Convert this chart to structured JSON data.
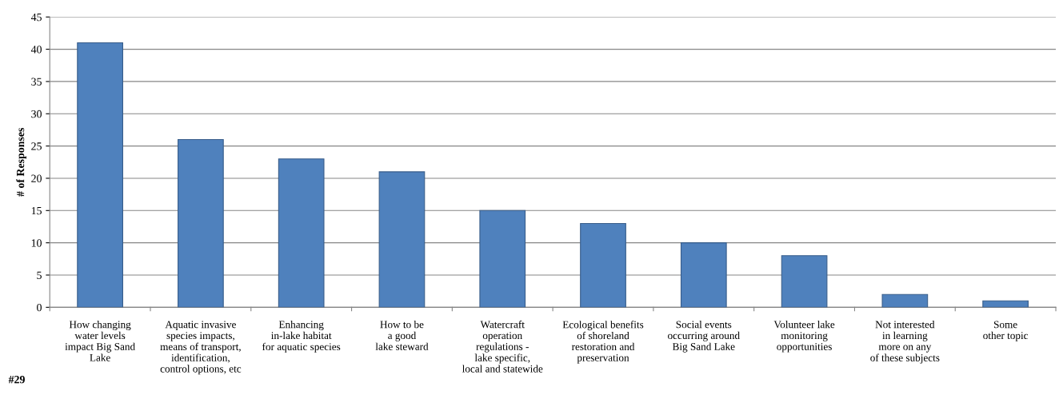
{
  "chart_data": {
    "type": "bar",
    "ylabel": "# of Responses",
    "categories": [
      "How changing\nwater levels\nimpact Big Sand\nLake",
      "Aquatic invasive\nspecies impacts,\nmeans of transport,\nidentification,\ncontrol options, etc",
      "Enhancing\nin-lake habitat\nfor aquatic species",
      "How to be\na good\nlake steward",
      "Watercraft\noperation\nregulations -\nlake specific,\nlocal and statewide",
      "Ecological benefits\nof shoreland\nrestoration and\npreservation",
      "Social events\noccurring around\nBig Sand Lake",
      "Volunteer lake\nmonitoring\nopportunities",
      "Not interested\nin learning\nmore on any\nof these subjects",
      "Some\nother topic"
    ],
    "values": [
      41,
      26,
      23,
      21,
      15,
      13,
      10,
      8,
      2,
      1
    ],
    "color": "#4f81bd",
    "ylim": [
      0,
      45
    ],
    "yticks": [
      0,
      5,
      10,
      15,
      20,
      25,
      30,
      35,
      40,
      45
    ],
    "grid": "y",
    "annotations": [
      "#29"
    ]
  }
}
